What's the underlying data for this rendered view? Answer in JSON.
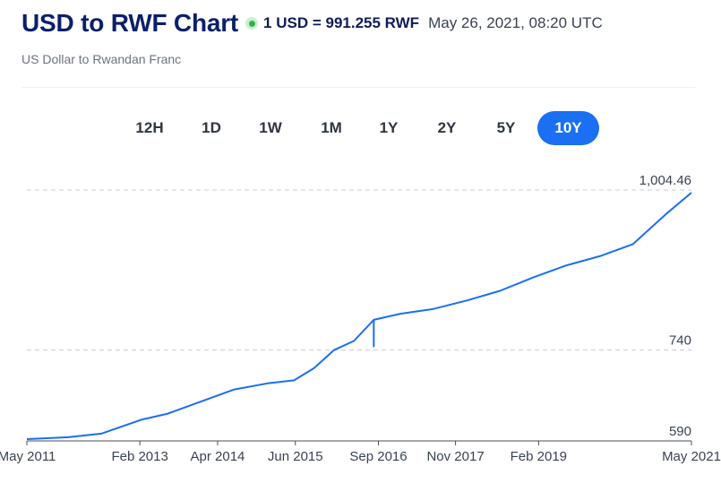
{
  "header": {
    "title": "USD to RWF Chart",
    "rate": "1 USD = 991.255 RWF",
    "timestamp": "May 26, 2021, 08:20 UTC",
    "subtitle": "US Dollar to Rwandan Franc",
    "live_icon": "live-status-dot-icon"
  },
  "ranges": [
    {
      "label": "12H",
      "active": false
    },
    {
      "label": "1D",
      "active": false
    },
    {
      "label": "1W",
      "active": false
    },
    {
      "label": "1M",
      "active": false
    },
    {
      "label": "1Y",
      "active": false
    },
    {
      "label": "2Y",
      "active": false
    },
    {
      "label": "5Y",
      "active": false
    },
    {
      "label": "10Y",
      "active": true
    }
  ],
  "colors": {
    "line": "#1a6ff2",
    "active_button": "#1a6ff2",
    "title": "#0b1f6b",
    "gridline": "#c8ccd2",
    "live_dot": "#2fb34a"
  },
  "chart_data": {
    "type": "line",
    "title": "USD to RWF Chart",
    "xlabel": "",
    "ylabel": "",
    "grid": "horizontal dashed at labeled values",
    "ylim": [
      590,
      1004.46
    ],
    "y_ticks": [
      {
        "value": 1004.46,
        "label": "1,004.46"
      },
      {
        "value": 740,
        "label": "740"
      },
      {
        "value": 590,
        "label": "590"
      }
    ],
    "x_ticks": [
      {
        "value": 2011.38,
        "label": "May 2011"
      },
      {
        "value": 2013.08,
        "label": "Feb 2013"
      },
      {
        "value": 2014.25,
        "label": "Apr 2014"
      },
      {
        "value": 2015.42,
        "label": "Jun 2015"
      },
      {
        "value": 2016.67,
        "label": "Sep 2016"
      },
      {
        "value": 2017.83,
        "label": "Nov 2017"
      },
      {
        "value": 2019.08,
        "label": "Feb 2019"
      },
      {
        "value": 2021.38,
        "label": "May 2021"
      }
    ],
    "x": [
      2011.38,
      2012.0,
      2012.5,
      2013.1,
      2013.5,
      2014.0,
      2014.5,
      2015.0,
      2015.4,
      2015.7,
      2016.0,
      2016.3,
      2016.6,
      2017.0,
      2017.5,
      2018.0,
      2018.5,
      2019.0,
      2019.5,
      2020.0,
      2020.5,
      2021.0,
      2021.38
    ],
    "series": [
      {
        "values": [
          593,
          596,
          602,
          625,
          635,
          655,
          675,
          685,
          690,
          710,
          740,
          755,
          790,
          800,
          808,
          822,
          838,
          860,
          880,
          895,
          915,
          965,
          1000
        ]
      }
    ],
    "annotations": [
      {
        "x": 2016.6,
        "y_low": 745,
        "note": "spike"
      }
    ]
  }
}
